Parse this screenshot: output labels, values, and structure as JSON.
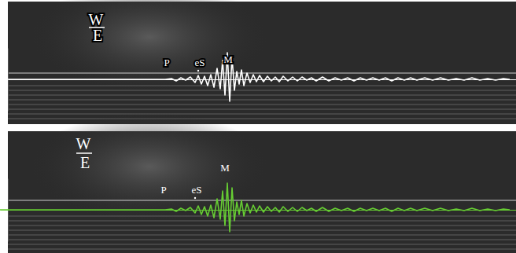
{
  "chart_data": [
    {
      "type": "line",
      "tick_labels": false,
      "xlim": [
        0,
        656
      ],
      "ylim": [
        -40,
        40
      ],
      "x": [
        0,
        210,
        218,
        224,
        230,
        236,
        242,
        248,
        252,
        256,
        260,
        264,
        268,
        272,
        276,
        280,
        283,
        286,
        289,
        292,
        295,
        298,
        301,
        304,
        307,
        310,
        314,
        318,
        322,
        326,
        330,
        335,
        340,
        345,
        350,
        355,
        360,
        366,
        372,
        378,
        384,
        390,
        396,
        402,
        410,
        418,
        426,
        434,
        442,
        450,
        458,
        466,
        474,
        482,
        490,
        498,
        506,
        514,
        522,
        530,
        540,
        550,
        560,
        570,
        580,
        590,
        600,
        610,
        620,
        630,
        640,
        648
      ],
      "series": [
        {
          "color": "#ffffff",
          "values": [
            0,
            0,
            1,
            -2,
            2,
            -1,
            3,
            -4,
            5,
            -6,
            4,
            -8,
            6,
            -10,
            14,
            -12,
            24,
            -20,
            34,
            -28,
            28,
            -14,
            10,
            -6,
            12,
            -8,
            8,
            -4,
            6,
            -3,
            5,
            -3,
            4,
            -2,
            3,
            -3,
            4,
            -2,
            3,
            -2,
            3,
            -1,
            2,
            -2,
            3,
            -2,
            2,
            -1,
            2,
            -2,
            2,
            -1,
            2,
            -1,
            2,
            -2,
            2,
            -1,
            2,
            -1,
            2,
            -1,
            2,
            -1,
            1,
            -1,
            2,
            -1,
            1,
            -1,
            1,
            0
          ]
        }
      ],
      "annotations": [
        {
          "text": "W",
          "x": 122
        },
        {
          "text": "E",
          "x": 124
        },
        {
          "text": "P",
          "x": 212
        },
        {
          "text": "eS",
          "x": 254
        },
        {
          "text": "M",
          "x": 290
        }
      ]
    },
    {
      "type": "line",
      "tick_labels": false,
      "xlim": [
        0,
        656
      ],
      "ylim": [
        -40,
        40
      ],
      "x": [
        0,
        210,
        218,
        224,
        230,
        236,
        242,
        248,
        252,
        256,
        260,
        264,
        268,
        272,
        276,
        280,
        283,
        286,
        289,
        292,
        295,
        298,
        301,
        304,
        307,
        310,
        314,
        318,
        322,
        326,
        330,
        335,
        340,
        345,
        350,
        355,
        360,
        366,
        372,
        378,
        384,
        390,
        396,
        402,
        410,
        418,
        426,
        434,
        442,
        450,
        458,
        466,
        474,
        482,
        490,
        498,
        506,
        514,
        522,
        530,
        540,
        550,
        560,
        570,
        580,
        590,
        600,
        610,
        620,
        630,
        640,
        648
      ],
      "series": [
        {
          "color": "#66cc33",
          "values": [
            0,
            0,
            1,
            -2,
            2,
            -1,
            3,
            -4,
            5,
            -6,
            4,
            -8,
            6,
            -10,
            14,
            -12,
            24,
            -20,
            34,
            -28,
            28,
            -14,
            10,
            -6,
            12,
            -8,
            8,
            -4,
            6,
            -3,
            5,
            -3,
            4,
            -2,
            3,
            -3,
            4,
            -2,
            3,
            -2,
            3,
            -1,
            2,
            -2,
            3,
            -2,
            2,
            -1,
            2,
            -2,
            2,
            -1,
            2,
            -1,
            2,
            -2,
            2,
            -1,
            2,
            -1,
            2,
            -1,
            2,
            -1,
            1,
            -1,
            2,
            -1,
            1,
            -1,
            1,
            0
          ]
        }
      ],
      "annotations": [
        {
          "text": "W",
          "x": 106
        },
        {
          "text": "E",
          "x": 108
        },
        {
          "text": "P",
          "x": 208
        },
        {
          "text": "eS",
          "x": 250
        },
        {
          "text": "M",
          "x": 286
        }
      ]
    }
  ]
}
